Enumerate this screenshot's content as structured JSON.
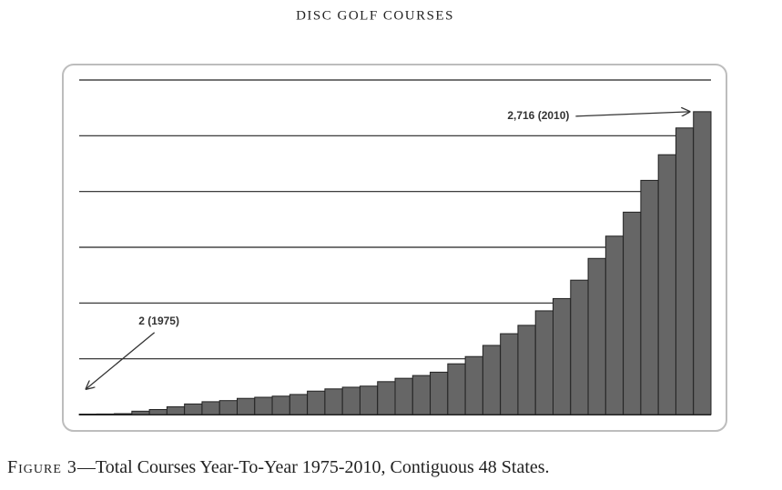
{
  "header": "DISC GOLF COURSES",
  "chart_data": {
    "type": "bar",
    "categories": [
      null,
      null,
      null,
      null,
      null,
      null,
      null,
      null,
      null,
      null,
      null,
      null,
      null,
      null,
      null,
      null,
      null,
      null,
      null,
      null,
      null,
      null,
      null,
      null,
      null,
      null,
      null,
      null,
      null,
      null,
      null,
      null,
      null,
      null,
      null,
      null
    ],
    "values": [
      2,
      5,
      8,
      30,
      45,
      70,
      95,
      115,
      125,
      145,
      155,
      165,
      180,
      210,
      230,
      245,
      255,
      295,
      325,
      350,
      380,
      455,
      520,
      620,
      725,
      800,
      930,
      1040,
      1205,
      1400,
      1600,
      1815,
      2100,
      2330,
      2570,
      2716
    ],
    "value_labels": [
      "2 (1975)",
      null,
      null,
      null,
      null,
      null,
      null,
      null,
      null,
      null,
      null,
      null,
      null,
      null,
      null,
      null,
      null,
      null,
      null,
      null,
      null,
      null,
      null,
      null,
      null,
      null,
      null,
      null,
      null,
      null,
      null,
      null,
      null,
      null,
      null,
      "2,716 (2010)"
    ],
    "color": "#666666",
    "ylim": [
      0,
      3000
    ],
    "yticks": [
      500,
      1000,
      1500,
      2000,
      2500,
      3000
    ],
    "grid": true
  },
  "caption": {
    "label": "Figure 3",
    "text": "—Total Courses Year-To-Year 1975-2010, Contiguous 48 States."
  }
}
